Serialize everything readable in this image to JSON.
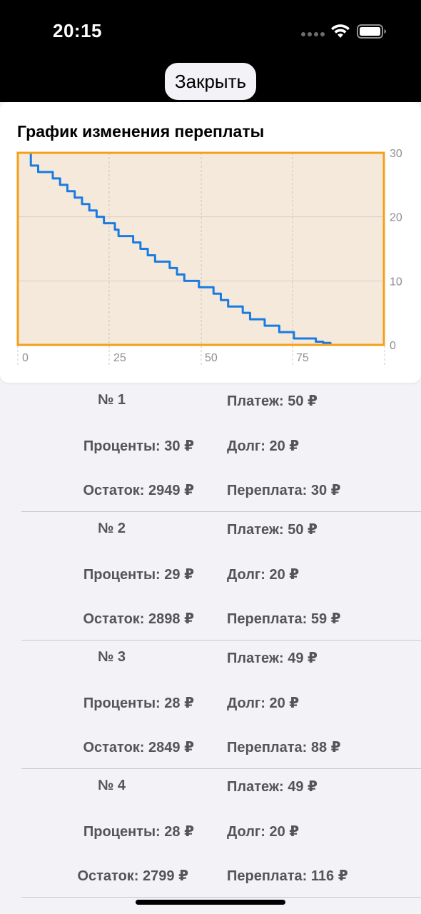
{
  "status_bar": {
    "time": "20:15"
  },
  "close_button": {
    "label": "Закрыть"
  },
  "chart_card": {
    "title": "График изменения переплаты"
  },
  "chart_data": {
    "type": "line",
    "title": "График изменения переплаты",
    "xlabel": "",
    "ylabel": "",
    "xlim": [
      0,
      88
    ],
    "ylim": [
      0,
      30
    ],
    "x_ticks": [
      "0",
      "25",
      "50",
      "75"
    ],
    "y_ticks": [
      "0",
      "10",
      "20",
      "30"
    ],
    "x_tick_values": [
      0,
      25,
      50,
      75
    ],
    "y_tick_values": [
      0,
      10,
      20,
      30
    ],
    "grid": true,
    "legend": "none",
    "line_color": "#1a7be0",
    "box_color": "#f59f1a",
    "fill_color": "#f5e9dc",
    "series": [
      {
        "x": [
          0,
          2,
          4,
          6,
          8,
          9,
          10,
          11,
          12,
          14,
          16,
          17,
          18,
          19,
          20,
          22,
          24,
          25,
          26,
          28,
          30,
          32,
          34,
          36,
          38,
          40,
          42,
          44,
          46,
          48,
          50,
          52,
          54,
          56,
          58,
          60,
          62,
          64,
          66,
          68,
          70,
          72,
          74,
          76,
          78,
          80,
          82,
          84,
          85,
          86,
          87
        ],
        "y": [
          30,
          28,
          27,
          27,
          26,
          26,
          25,
          25,
          24,
          23,
          22,
          22,
          21,
          21,
          20,
          19,
          19,
          18,
          17,
          17,
          16,
          15,
          14,
          13,
          13,
          12,
          11,
          10,
          10,
          9,
          9,
          8,
          7,
          6,
          6,
          5,
          4,
          4,
          3,
          3,
          2,
          2,
          1,
          1,
          1,
          0.5,
          0.3,
          0,
          0,
          0,
          0
        ]
      }
    ]
  },
  "payments": [
    {
      "number": "№ 1",
      "payment": "Платеж: 50 ₽",
      "interest": "Проценты: 30 ₽",
      "debt": "Долг: 20 ₽",
      "balance": "Остаток: 2949 ₽",
      "overpay": "Переплата: 30 ₽"
    },
    {
      "number": "№ 2",
      "payment": "Платеж: 50 ₽",
      "interest": "Проценты: 29 ₽",
      "debt": "Долг: 20 ₽",
      "balance": "Остаток: 2898 ₽",
      "overpay": "Переплата: 59 ₽"
    },
    {
      "number": "№ 3",
      "payment": "Платеж: 49 ₽",
      "interest": "Проценты: 28 ₽",
      "debt": "Долг: 20 ₽",
      "balance": "Остаток: 2849 ₽",
      "overpay": "Переплата: 88 ₽"
    },
    {
      "number": "№ 4",
      "payment": "Платеж: 49 ₽",
      "interest": "Проценты: 28 ₽",
      "debt": "Долг: 20 ₽",
      "balance": "Остаток: 2799 ₽",
      "overpay": "Переплата: 116 ₽"
    }
  ]
}
